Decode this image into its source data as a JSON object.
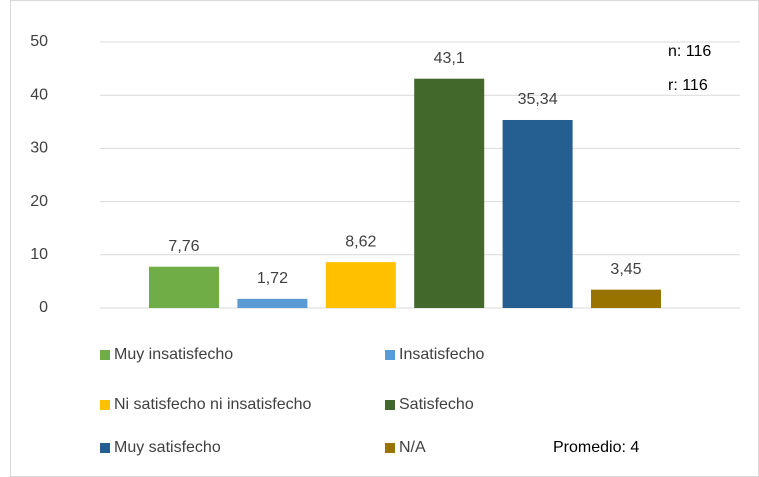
{
  "chart_data": {
    "type": "bar",
    "series": [
      {
        "name": "Muy insatisfecho",
        "color": "#70ad47",
        "values": [
          7.76
        ],
        "value_labels": [
          "7,76"
        ]
      },
      {
        "name": "Insatisfecho",
        "color": "#5b9bd5",
        "values": [
          1.72
        ],
        "value_labels": [
          "1,72"
        ]
      },
      {
        "name": "Ni satisfecho ni insatisfecho",
        "color": "#ffc000",
        "values": [
          8.62
        ],
        "value_labels": [
          "8,62"
        ]
      },
      {
        "name": "Satisfecho",
        "color": "#43682b",
        "values": [
          43.1
        ],
        "value_labels": [
          "43,1"
        ]
      },
      {
        "name": "Muy satisfecho",
        "color": "#255e91",
        "values": [
          35.34
        ],
        "value_labels": [
          "35,34"
        ]
      },
      {
        "name": "N/A",
        "color": "#997300",
        "values": [
          3.45
        ],
        "value_labels": [
          "3,45"
        ]
      }
    ],
    "ylim": [
      0,
      50
    ],
    "yticks": [
      0,
      10,
      20,
      30,
      40,
      50
    ],
    "grid": true,
    "legend": "bottom",
    "annotations": [
      "n: 116",
      "r: 116",
      "Promedio: 4"
    ]
  }
}
